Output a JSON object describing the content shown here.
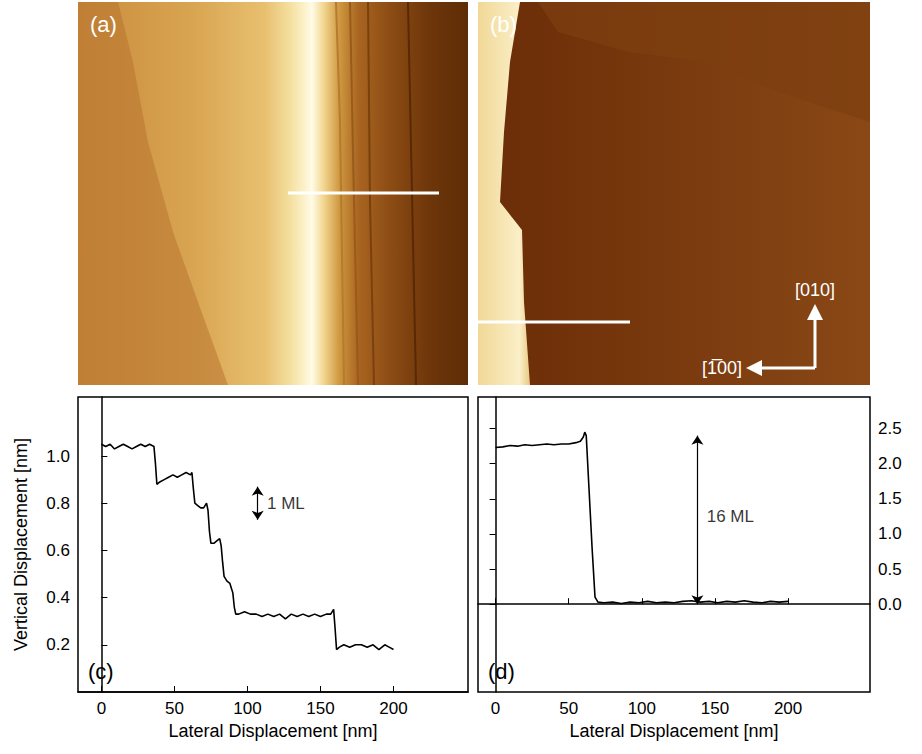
{
  "images": [
    {
      "label": "(a)"
    },
    {
      "label": "(b)",
      "directions": [
        "[010]",
        "[1̅00]"
      ]
    }
  ],
  "chart_data": [
    {
      "type": "line",
      "panel_label": "(c)",
      "x_label": "Lateral Displacement [nm]",
      "y_label": "Vertical Displacement [nm]",
      "x": [
        0,
        3,
        6,
        9,
        12,
        15,
        18,
        21,
        24,
        27,
        30,
        33,
        36,
        37,
        38,
        40,
        43,
        46,
        49,
        52,
        55,
        58,
        61,
        62,
        63,
        64,
        66,
        68,
        70,
        72,
        73,
        74,
        75,
        77,
        79,
        81,
        82,
        83,
        84,
        86,
        88,
        89,
        90,
        91,
        92,
        94,
        98,
        102,
        106,
        110,
        114,
        118,
        122,
        126,
        130,
        134,
        138,
        142,
        146,
        150,
        154,
        157,
        159,
        160,
        161,
        163,
        166,
        170,
        174,
        178,
        182,
        186,
        190,
        194,
        197,
        200
      ],
      "values": [
        1.05,
        1.04,
        1.05,
        1.03,
        1.04,
        1.05,
        1.04,
        1.03,
        1.04,
        1.05,
        1.04,
        1.05,
        1.04,
        0.97,
        0.88,
        0.89,
        0.9,
        0.91,
        0.92,
        0.91,
        0.92,
        0.93,
        0.92,
        0.93,
        0.86,
        0.8,
        0.79,
        0.78,
        0.78,
        0.8,
        0.77,
        0.68,
        0.63,
        0.63,
        0.64,
        0.65,
        0.62,
        0.55,
        0.49,
        0.47,
        0.46,
        0.44,
        0.42,
        0.36,
        0.33,
        0.33,
        0.34,
        0.33,
        0.33,
        0.32,
        0.33,
        0.32,
        0.33,
        0.31,
        0.33,
        0.32,
        0.33,
        0.32,
        0.33,
        0.32,
        0.33,
        0.33,
        0.35,
        0.27,
        0.18,
        0.19,
        0.2,
        0.19,
        0.2,
        0.2,
        0.19,
        0.2,
        0.18,
        0.2,
        0.19,
        0.18
      ],
      "color": "#000000",
      "xlim": [
        -16,
        251
      ],
      "ylim": [
        0.0,
        1.25
      ],
      "xticks": [
        0,
        50,
        100,
        150,
        200
      ],
      "yticks": [
        0.2,
        0.4,
        0.6,
        0.8,
        {
          "value": 1,
          "label": "1.0"
        }
      ],
      "grid": false,
      "annotations": [
        {
          "text": "1 ML",
          "x": 107,
          "y_from": 0.73,
          "y_to": 0.87,
          "text_x": 112,
          "text_y": 0.8
        }
      ]
    },
    {
      "type": "line",
      "panel_label": "(d)",
      "x_label": "Lateral Displacement [nm]",
      "x": [
        0,
        5,
        10,
        15,
        20,
        25,
        30,
        35,
        40,
        45,
        50,
        55,
        58,
        60,
        61,
        62,
        64,
        66,
        68,
        70,
        74,
        80,
        86,
        92,
        98,
        104,
        110,
        116,
        122,
        128,
        134,
        140,
        146,
        152,
        158,
        164,
        170,
        176,
        182,
        188,
        194,
        200
      ],
      "values": [
        2.23,
        2.24,
        2.26,
        2.25,
        2.27,
        2.26,
        2.27,
        2.28,
        2.27,
        2.28,
        2.28,
        2.3,
        2.32,
        2.38,
        2.45,
        2.4,
        1.6,
        0.8,
        0.1,
        0.03,
        0.02,
        0.03,
        0.01,
        0.03,
        0.02,
        0.04,
        0.02,
        0.03,
        0.02,
        0.04,
        0.05,
        0.03,
        0.04,
        0.02,
        0.04,
        0.03,
        0.05,
        0.03,
        0.02,
        0.04,
        0.03,
        0.04
      ],
      "color": "#000000",
      "xlim": [
        -12,
        256
      ],
      "ylim": [
        -1.25,
        2.95
      ],
      "xticks": [
        0,
        50,
        100,
        150,
        200
      ],
      "yticks": [
        {
          "value": 0,
          "label": "0.0"
        },
        0.5,
        {
          "value": 1,
          "label": "1.0"
        },
        1.5,
        {
          "value": 2,
          "label": "2.0"
        },
        2.5
      ],
      "grid": false,
      "annotations": [
        {
          "text": "16 ML",
          "x": 138,
          "y_from": 0.0,
          "y_to": 2.4,
          "text_x": 143,
          "text_y": 1.25
        }
      ]
    }
  ]
}
